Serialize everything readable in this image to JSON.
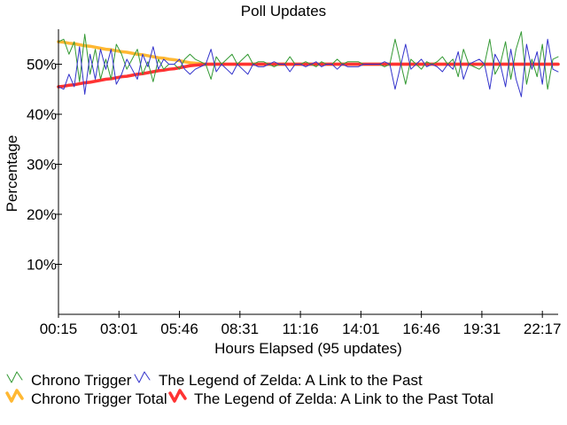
{
  "chart_data": {
    "type": "line",
    "title": "Poll Updates",
    "xlabel": "Hours Elapsed (95 updates)",
    "ylabel": "Percentage",
    "xlim": [
      0,
      95
    ],
    "ylim": [
      0,
      57
    ],
    "y_ticks": [
      10,
      20,
      30,
      40,
      50
    ],
    "y_tick_labels": [
      "10%",
      "20%",
      "30%",
      "40%",
      "50%"
    ],
    "x_ticks": [
      0,
      11.5,
      23,
      34.5,
      46,
      57.5,
      69,
      80.5,
      92
    ],
    "x_tick_labels": [
      "00:15",
      "03:01",
      "05:46",
      "08:31",
      "11:16",
      "14:01",
      "16:46",
      "19:31",
      "22:17"
    ],
    "grid": false,
    "legend_position": "bottom",
    "series": [
      {
        "name": "Chrono Trigger",
        "color": "#339933",
        "style": "thin",
        "values": [
          54.5,
          55.0,
          52.0,
          54.5,
          46.5,
          56.0,
          48.0,
          53.0,
          47.0,
          51.0,
          47.0,
          54.0,
          52.0,
          49.0,
          51.0,
          53.0,
          48.0,
          50.5,
          46.5,
          51.0,
          49.0,
          50.0,
          50.0,
          49.0,
          51.0,
          52.0,
          51.0,
          50.5,
          50.0,
          47.0,
          51.5,
          50.0,
          51.0,
          52.0,
          50.0,
          51.0,
          52.0,
          50.0,
          50.5,
          50.5,
          50.0,
          49.5,
          50.0,
          50.0,
          51.5,
          50.0,
          50.0,
          50.5,
          50.0,
          49.5,
          50.5,
          50.0,
          50.0,
          51.0,
          50.0,
          50.5,
          50.5,
          50.5,
          50.0,
          50.0,
          50.0,
          50.0,
          49.5,
          50.0,
          55.0,
          50.5,
          46.0,
          51.0,
          50.0,
          49.0,
          50.5,
          50.0,
          50.5,
          51.5,
          50.0,
          51.0,
          47.5,
          53.0,
          50.0,
          49.5,
          49.0,
          50.0,
          55.0,
          48.0,
          50.0,
          54.5,
          47.0,
          53.0,
          56.5,
          46.0,
          51.0,
          47.5,
          54.0,
          45.0,
          51.0,
          51.5
        ]
      },
      {
        "name": "The Legend of Zelda: A Link to the Past",
        "color": "#3333cc",
        "style": "thin",
        "values": [
          45.5,
          45.0,
          48.0,
          45.5,
          53.5,
          44.0,
          52.0,
          47.0,
          53.0,
          49.0,
          53.0,
          46.0,
          48.0,
          51.0,
          49.0,
          47.0,
          52.0,
          49.5,
          53.5,
          49.0,
          51.0,
          50.0,
          50.0,
          51.0,
          49.0,
          48.0,
          49.0,
          49.5,
          50.0,
          53.0,
          48.5,
          50.0,
          49.0,
          48.0,
          50.0,
          49.0,
          48.0,
          50.0,
          49.5,
          49.5,
          50.0,
          50.5,
          50.0,
          50.0,
          48.5,
          50.0,
          50.0,
          49.5,
          50.0,
          50.5,
          49.5,
          50.0,
          50.0,
          49.0,
          50.0,
          49.5,
          49.5,
          49.5,
          50.0,
          50.0,
          50.0,
          50.0,
          50.5,
          50.0,
          45.0,
          49.5,
          54.0,
          49.0,
          50.0,
          51.0,
          49.5,
          50.0,
          49.5,
          48.5,
          50.0,
          49.0,
          52.5,
          47.0,
          50.0,
          50.5,
          51.0,
          50.0,
          45.0,
          52.0,
          50.0,
          45.5,
          53.0,
          47.0,
          43.5,
          54.0,
          49.0,
          52.5,
          46.0,
          55.0,
          49.0,
          48.5
        ]
      },
      {
        "name": "Chrono Trigger Total",
        "color": "#ffb833",
        "style": "thick",
        "values": [
          54.5,
          54.4,
          54.2,
          54.1,
          53.9,
          53.7,
          53.6,
          53.4,
          53.2,
          53.0,
          52.9,
          52.7,
          52.5,
          52.4,
          52.2,
          52.0,
          51.9,
          51.7,
          51.5,
          51.3,
          51.2,
          51.0,
          50.9,
          50.7,
          50.5,
          50.3,
          50.2,
          50.1,
          50.0,
          50.0,
          50.0,
          50.0,
          50.0,
          50.0,
          50.0,
          50.0,
          50.0,
          50.0,
          50.0,
          50.0,
          50.0,
          50.0,
          50.0,
          50.0,
          50.0,
          50.0,
          50.0,
          50.0,
          50.0,
          50.0,
          50.0,
          50.0,
          50.0,
          50.0,
          50.0,
          50.0,
          50.0,
          50.0,
          50.0,
          50.0,
          50.0,
          50.0,
          50.0,
          50.0,
          50.0,
          50.0,
          50.0,
          50.0,
          50.0,
          50.0,
          50.0,
          50.0,
          50.0,
          50.0,
          50.0,
          50.0,
          50.0,
          50.0,
          50.0,
          50.0,
          50.0,
          50.0,
          50.0,
          50.0,
          50.0,
          50.0,
          50.0,
          50.0,
          50.0,
          50.0,
          50.0,
          50.0,
          50.0,
          50.0,
          50.0,
          50.0
        ]
      },
      {
        "name": "The Legend of Zelda: A Link to the Past Total",
        "color": "#ff3333",
        "style": "thick",
        "values": [
          45.5,
          45.6,
          45.8,
          45.9,
          46.1,
          46.3,
          46.4,
          46.6,
          46.8,
          47.0,
          47.1,
          47.3,
          47.5,
          47.6,
          47.8,
          48.0,
          48.1,
          48.3,
          48.5,
          48.7,
          48.8,
          49.0,
          49.1,
          49.3,
          49.5,
          49.7,
          49.8,
          49.9,
          50.0,
          50.0,
          50.0,
          50.0,
          50.0,
          50.0,
          50.0,
          50.0,
          50.0,
          50.0,
          50.0,
          50.0,
          50.0,
          50.0,
          50.0,
          50.0,
          50.0,
          50.0,
          50.0,
          50.0,
          50.0,
          50.0,
          50.0,
          50.0,
          50.0,
          50.0,
          50.0,
          50.0,
          50.0,
          50.0,
          50.0,
          50.0,
          50.0,
          50.0,
          50.0,
          50.0,
          50.0,
          50.0,
          50.0,
          50.0,
          50.0,
          50.0,
          50.0,
          50.0,
          50.0,
          50.0,
          50.0,
          50.0,
          50.0,
          50.0,
          50.0,
          50.0,
          50.0,
          50.0,
          50.0,
          50.0,
          50.0,
          50.0,
          50.0,
          50.0,
          50.0,
          50.0,
          50.0,
          50.0,
          50.0,
          50.0,
          50.0,
          50.0
        ]
      }
    ]
  }
}
